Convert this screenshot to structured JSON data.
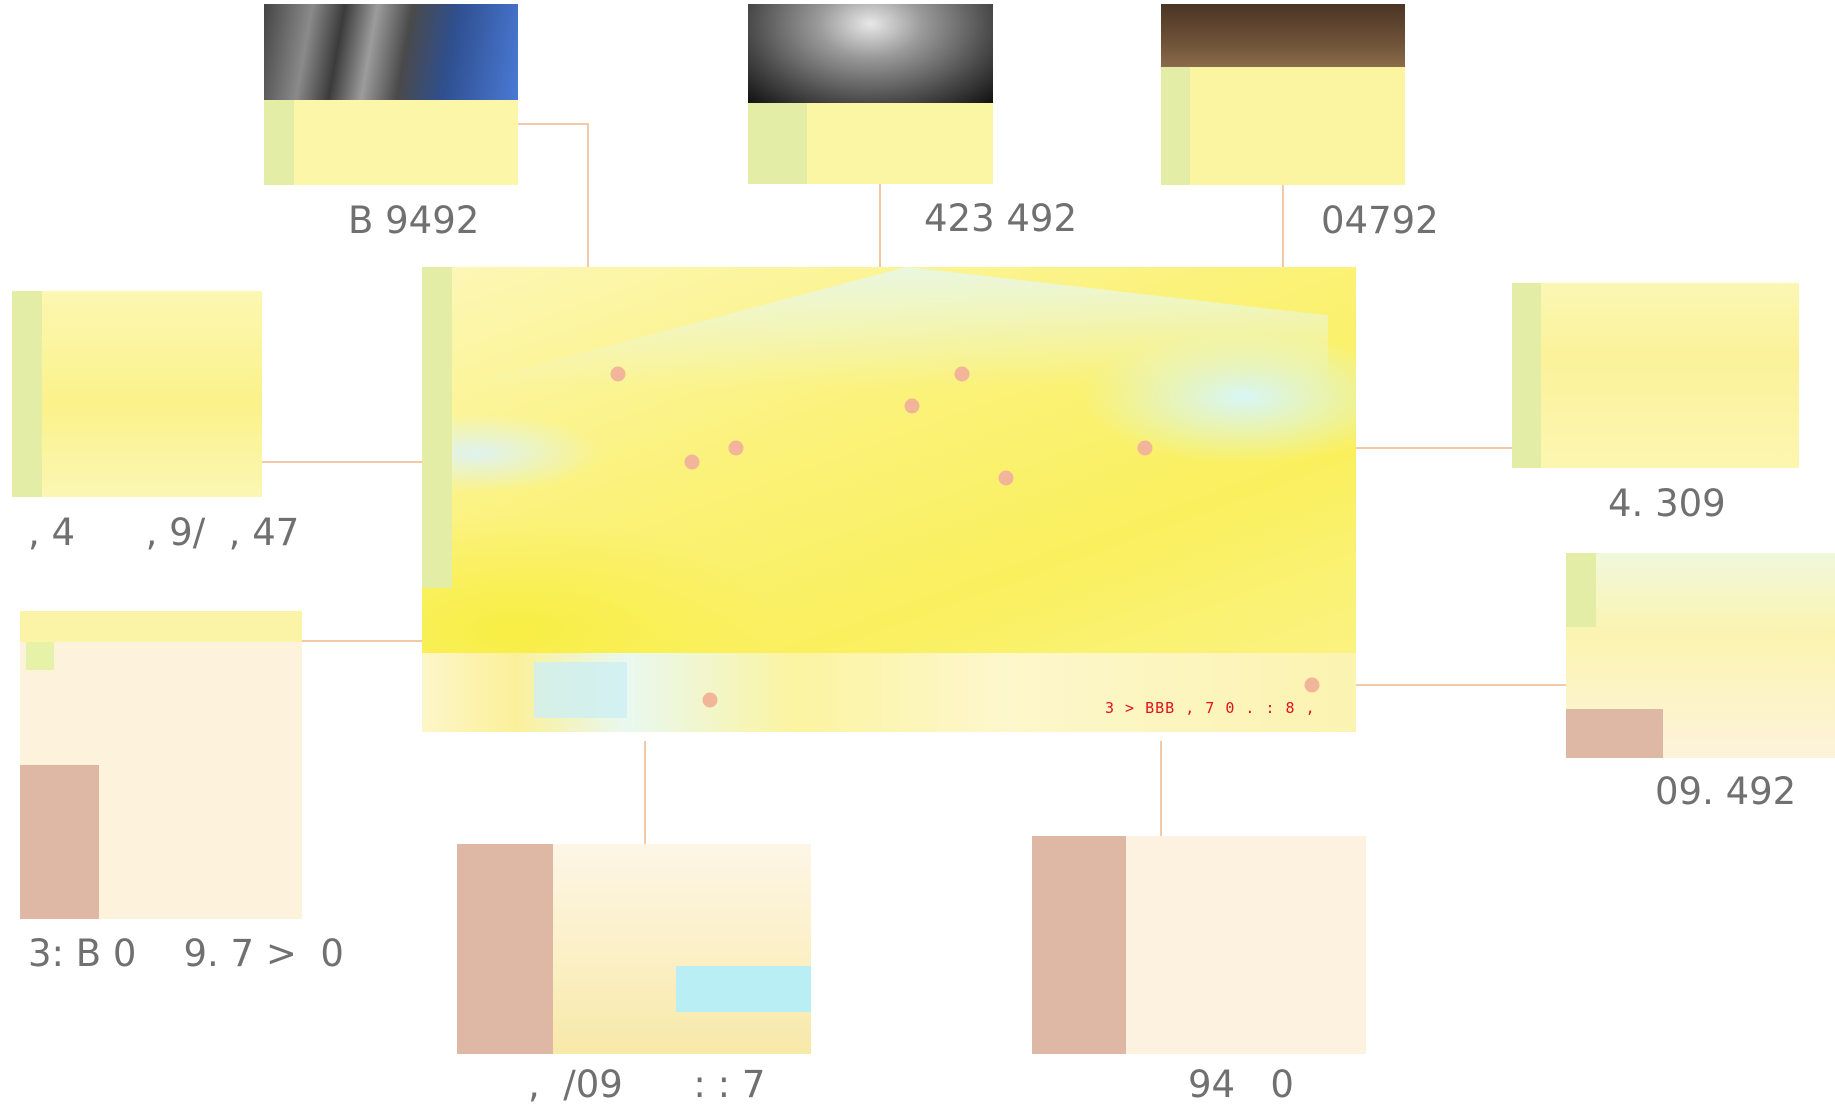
{
  "hub": {
    "overlay_text": "3 > BBB , 7 0 . : 8 ,",
    "accent_color": "#e0131f"
  },
  "colors": {
    "connector": "#f6c9a6",
    "hotspot": "#f2b59a",
    "caption": "#707070"
  },
  "thumbnails": [
    {
      "id": "top-left",
      "caption": "B 9492"
    },
    {
      "id": "top-middle",
      "caption": "423 492"
    },
    {
      "id": "top-right",
      "caption": "04792"
    },
    {
      "id": "left-upper",
      "caption": ", 4      , 9/  , 47"
    },
    {
      "id": "right-upper",
      "caption": "4. 309"
    },
    {
      "id": "left-lower",
      "caption": "3: B 0    9. 7 >  0"
    },
    {
      "id": "right-lower",
      "caption": "09. 492"
    },
    {
      "id": "bottom-left",
      "caption": ",  /09      : : 7"
    },
    {
      "id": "bottom-right",
      "caption": "94   0"
    }
  ]
}
